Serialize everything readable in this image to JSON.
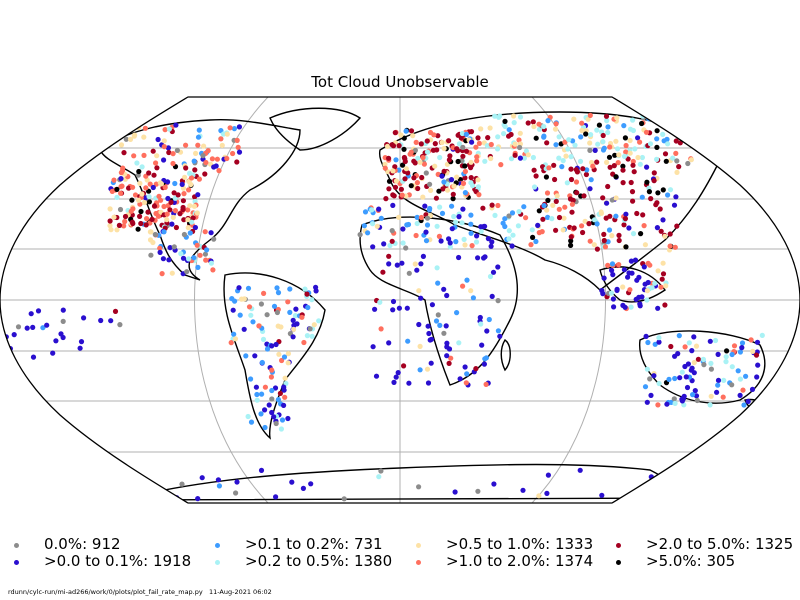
{
  "title": "Tot Cloud Unobservable",
  "legend": [
    {
      "label": "0.0%: 912",
      "color": "#8c8c8c"
    },
    {
      "label": ">0.0 to 0.1%: 1918",
      "color": "#2a0fcf"
    },
    {
      "label": ">0.1 to 0.2%: 731",
      "color": "#3d9cff"
    },
    {
      "label": ">0.2 to 0.5%: 1380",
      "color": "#a9f2f5"
    },
    {
      "label": ">0.5 to 1.0%: 1333",
      "color": "#fde2a6"
    },
    {
      "label": ">1.0 to 2.0%: 1374",
      "color": "#ff6f5e"
    },
    {
      "label": ">2.0 to 5.0%: 1325",
      "color": "#a50021"
    },
    {
      "label": ">5.0%: 305",
      "color": "#000000"
    }
  ],
  "footer": {
    "path": "rdunn/cylc-run/mi-ad266/work/0/plots/plot_fail_rate_map.py",
    "date": "11-Aug-2021 06:02"
  }
}
